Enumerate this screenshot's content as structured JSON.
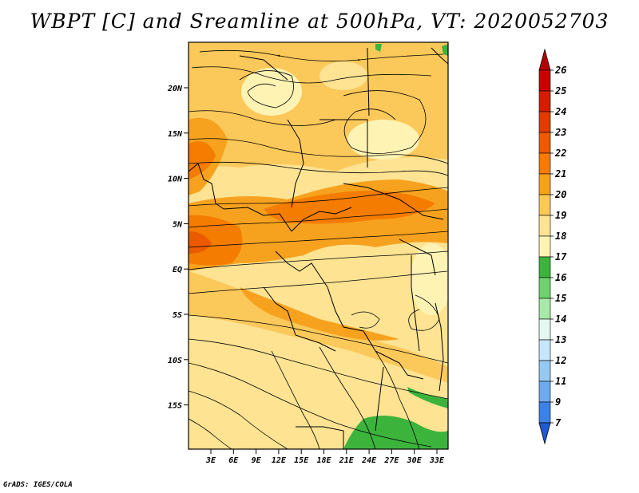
{
  "title": "WBPT [C] and Sreamline at 500hPa, VT: 2020052703",
  "credit": "GrADS: IGES/COLA",
  "map": {
    "lat_ticks": [
      "20N",
      "15N",
      "10N",
      "5N",
      "EQ",
      "5S",
      "10S",
      "15S"
    ],
    "lon_ticks": [
      "3E",
      "6E",
      "9E",
      "12E",
      "15E",
      "18E",
      "21E",
      "24E",
      "27E",
      "30E",
      "33E"
    ]
  },
  "colorbar": {
    "labels": [
      "26",
      "25",
      "24",
      "23",
      "22",
      "21",
      "20",
      "19",
      "18",
      "17",
      "16",
      "15",
      "14",
      "13",
      "12",
      "11",
      "9",
      "7"
    ],
    "colors": [
      "#c80000",
      "#d21e00",
      "#e03c00",
      "#ec5a00",
      "#f47c00",
      "#f7a21e",
      "#fbc85a",
      "#fde392",
      "#fff3b4",
      "#3cb43c",
      "#6ed26e",
      "#a8e8a8",
      "#e2f8f0",
      "#c8e6fa",
      "#96c8f0",
      "#6eaaf0",
      "#3c82e6",
      "#1e5ad2"
    ],
    "top_arrow_color": "#b40000",
    "bottom_arrow_color": "#1e5ad2"
  }
}
